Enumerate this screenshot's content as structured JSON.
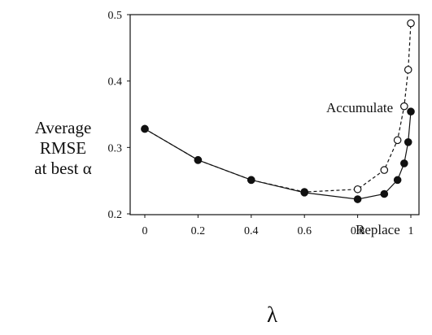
{
  "chart_data": {
    "type": "line",
    "xlabel": "λ",
    "ylabel": [
      "Average",
      "RMSE",
      "at best α"
    ],
    "xlim": [
      0,
      1
    ],
    "ylim": [
      0.2,
      0.5
    ],
    "xticks": [
      {
        "v": 0,
        "label": "0"
      },
      {
        "v": 0.2,
        "label": "0.2"
      },
      {
        "v": 0.4,
        "label": "0.4"
      },
      {
        "v": 0.6,
        "label": "0.6"
      },
      {
        "v": 0.8,
        "label": "0.8"
      },
      {
        "v": 1,
        "label": "1"
      }
    ],
    "yticks": [
      {
        "v": 0.2,
        "label": "0.2"
      },
      {
        "v": 0.3,
        "label": "0.3"
      },
      {
        "v": 0.4,
        "label": "0.4"
      },
      {
        "v": 0.5,
        "label": "0.5"
      }
    ],
    "grid": false,
    "series": [
      {
        "name": "Accumulate",
        "line": "dashed",
        "marker": "open-circle",
        "x": [
          0,
          0.2,
          0.4,
          0.6,
          0.8,
          0.9,
          0.95,
          0.975,
          0.99,
          1
        ],
        "y": [
          0.328,
          0.281,
          0.251,
          0.233,
          0.237,
          0.266,
          0.311,
          0.362,
          0.417,
          0.487
        ]
      },
      {
        "name": "Replace",
        "line": "solid",
        "marker": "filled-circle",
        "x": [
          0,
          0.2,
          0.4,
          0.6,
          0.8,
          0.9,
          0.95,
          0.975,
          0.99,
          1
        ],
        "y": [
          0.328,
          0.281,
          0.251,
          0.232,
          0.222,
          0.23,
          0.251,
          0.276,
          0.308,
          0.354
        ]
      }
    ]
  }
}
